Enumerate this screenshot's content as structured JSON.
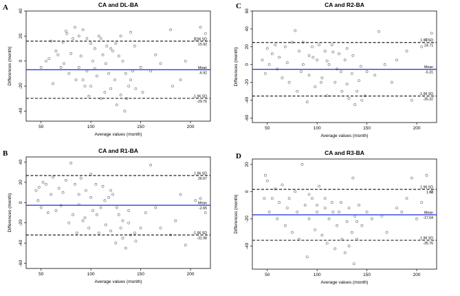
{
  "chart_data": [
    {
      "type": "scatter",
      "letter": "A",
      "title": "CA and DL-BA",
      "xlabel": "Average values (month)",
      "ylabel": "Differences (month)",
      "xlim": [
        35,
        220
      ],
      "ylim": [
        -48,
        40
      ],
      "xticks": [
        50,
        100,
        150,
        200
      ],
      "yticks": [
        -40,
        -20,
        0,
        20,
        40
      ],
      "lines": {
        "upper": {
          "value": 15.92,
          "label": "1.96 SD",
          "text": "15.92"
        },
        "mean": {
          "value": -6.92,
          "label": "Mean",
          "text": "-6.92"
        },
        "lower": {
          "value": -29.76,
          "label": "-1.96 SD",
          "text": "-29.76"
        }
      },
      "colors": {
        "mean": "#2b3be0",
        "limits": "#222222",
        "points": "#666666"
      },
      "points": [
        [
          50,
          -5
        ],
        [
          55,
          0
        ],
        [
          58,
          2
        ],
        [
          60,
          16
        ],
        [
          62,
          -18
        ],
        [
          65,
          8
        ],
        [
          67,
          5
        ],
        [
          70,
          -5
        ],
        [
          72,
          15
        ],
        [
          73,
          -2
        ],
        [
          75,
          24
        ],
        [
          76,
          22
        ],
        [
          78,
          -10
        ],
        [
          80,
          6
        ],
        [
          82,
          18
        ],
        [
          84,
          27
        ],
        [
          85,
          -15
        ],
        [
          88,
          20
        ],
        [
          90,
          4
        ],
        [
          92,
          25
        ],
        [
          94,
          -20
        ],
        [
          96,
          18
        ],
        [
          98,
          -28
        ],
        [
          100,
          -20
        ],
        [
          102,
          0
        ],
        [
          104,
          10
        ],
        [
          106,
          -12
        ],
        [
          108,
          20
        ],
        [
          110,
          -30
        ],
        [
          112,
          5
        ],
        [
          114,
          -25
        ],
        [
          116,
          12
        ],
        [
          118,
          -10
        ],
        [
          120,
          -22
        ],
        [
          122,
          8
        ],
        [
          124,
          -15
        ],
        [
          126,
          -35
        ],
        [
          128,
          4
        ],
        [
          130,
          -27
        ],
        [
          132,
          0
        ],
        [
          134,
          -40
        ],
        [
          136,
          -30
        ],
        [
          138,
          -20
        ],
        [
          140,
          -15
        ],
        [
          142,
          -8
        ],
        [
          145,
          -22
        ],
        [
          150,
          -5
        ],
        [
          152,
          -25
        ],
        [
          160,
          -8
        ],
        [
          165,
          5
        ],
        [
          170,
          -2
        ],
        [
          180,
          25
        ],
        [
          182,
          -20
        ],
        [
          190,
          -15
        ],
        [
          195,
          0
        ],
        [
          205,
          18
        ],
        [
          210,
          27
        ],
        [
          215,
          22
        ],
        [
          88,
          -5
        ],
        [
          92,
          -15
        ],
        [
          96,
          -8
        ],
        [
          100,
          14
        ],
        [
          104,
          -6
        ],
        [
          110,
          18
        ],
        [
          115,
          -2
        ],
        [
          120,
          10
        ],
        [
          125,
          14
        ],
        [
          130,
          20
        ],
        [
          135,
          -10
        ],
        [
          140,
          23
        ],
        [
          144,
          12
        ]
      ]
    },
    {
      "type": "scatter",
      "letter": "C",
      "title": "CA and R2-BA",
      "xlabel": "Average values (month)",
      "ylabel": "Differences (month)",
      "xlim": [
        35,
        220
      ],
      "ylim": [
        -65,
        60
      ],
      "xticks": [
        50,
        100,
        150,
        200
      ],
      "yticks": [
        -60,
        -40,
        -20,
        0,
        20,
        40,
        60
      ],
      "lines": {
        "upper": {
          "value": 24.71,
          "label": "1.96 SD",
          "text": "24.71"
        },
        "mean": {
          "value": -5.31,
          "label": "Mean",
          "text": "-5.31"
        },
        "lower": {
          "value": -35.32,
          "label": "-1.96 SD",
          "text": "-35.32"
        }
      },
      "colors": {
        "mean": "#2b3be0",
        "limits": "#222222",
        "points": "#666666"
      },
      "points": [
        [
          45,
          5
        ],
        [
          48,
          -10
        ],
        [
          50,
          18
        ],
        [
          52,
          0
        ],
        [
          55,
          12
        ],
        [
          58,
          22
        ],
        [
          60,
          -5
        ],
        [
          62,
          8
        ],
        [
          65,
          -15
        ],
        [
          68,
          20
        ],
        [
          70,
          2
        ],
        [
          72,
          -20
        ],
        [
          75,
          25
        ],
        [
          78,
          38
        ],
        [
          80,
          -30
        ],
        [
          82,
          15
        ],
        [
          84,
          -8
        ],
        [
          86,
          25
        ],
        [
          90,
          -42
        ],
        [
          92,
          10
        ],
        [
          95,
          20
        ],
        [
          98,
          -25
        ],
        [
          100,
          5
        ],
        [
          102,
          22
        ],
        [
          105,
          -15
        ],
        [
          108,
          15
        ],
        [
          110,
          -35
        ],
        [
          112,
          0
        ],
        [
          115,
          22
        ],
        [
          118,
          -20
        ],
        [
          120,
          -5
        ],
        [
          122,
          12
        ],
        [
          125,
          -30
        ],
        [
          128,
          5
        ],
        [
          130,
          -22
        ],
        [
          132,
          -38
        ],
        [
          135,
          -10
        ],
        [
          138,
          -45
        ],
        [
          140,
          -30
        ],
        [
          142,
          -18
        ],
        [
          145,
          -40
        ],
        [
          148,
          -35
        ],
        [
          150,
          -8
        ],
        [
          158,
          -12
        ],
        [
          162,
          37
        ],
        [
          168,
          0
        ],
        [
          175,
          -20
        ],
        [
          180,
          5
        ],
        [
          190,
          15
        ],
        [
          195,
          -40
        ],
        [
          205,
          20
        ],
        [
          210,
          28
        ],
        [
          215,
          35
        ],
        [
          86,
          0
        ],
        [
          92,
          -12
        ],
        [
          96,
          8
        ],
        [
          104,
          -20
        ],
        [
          110,
          4
        ],
        [
          116,
          14
        ],
        [
          124,
          -8
        ],
        [
          130,
          18
        ],
        [
          136,
          10
        ],
        [
          144,
          -2
        ]
      ]
    },
    {
      "type": "scatter",
      "letter": "B",
      "title": "CA and R1-BA",
      "xlabel": "Average values (month)",
      "ylabel": "Differences (month)",
      "xlim": [
        35,
        220
      ],
      "ylim": [
        -65,
        45
      ],
      "xticks": [
        50,
        100,
        150,
        200
      ],
      "yticks": [
        -60,
        -40,
        -20,
        0,
        20,
        40
      ],
      "lines": {
        "upper": {
          "value": 26.67,
          "label": "1.96 SD",
          "text": "26.67"
        },
        "mean": {
          "value": -2.65,
          "label": "Mean",
          "text": "-2.65"
        },
        "lower": {
          "value": -31.98,
          "label": "-1.96 SD",
          "text": "-31.98"
        }
      },
      "colors": {
        "mean": "#2b3be0",
        "limits": "#222222",
        "points": "#666666"
      },
      "points": [
        [
          45,
          12
        ],
        [
          47,
          2
        ],
        [
          48,
          15
        ],
        [
          50,
          -5
        ],
        [
          52,
          20
        ],
        [
          55,
          18
        ],
        [
          57,
          -10
        ],
        [
          60,
          8
        ],
        [
          62,
          25
        ],
        [
          65,
          -8
        ],
        [
          68,
          14
        ],
        [
          70,
          -3
        ],
        [
          72,
          10
        ],
        [
          75,
          22
        ],
        [
          78,
          -20
        ],
        [
          80,
          39
        ],
        [
          82,
          -12
        ],
        [
          84,
          18
        ],
        [
          86,
          -30
        ],
        [
          88,
          8
        ],
        [
          90,
          24
        ],
        [
          92,
          -18
        ],
        [
          95,
          12
        ],
        [
          98,
          -25
        ],
        [
          100,
          28
        ],
        [
          102,
          -8
        ],
        [
          105,
          18
        ],
        [
          108,
          -30
        ],
        [
          110,
          -5
        ],
        [
          112,
          16
        ],
        [
          115,
          -22
        ],
        [
          118,
          5
        ],
        [
          120,
          -28
        ],
        [
          122,
          8
        ],
        [
          125,
          -40
        ],
        [
          128,
          -12
        ],
        [
          130,
          -25
        ],
        [
          132,
          -35
        ],
        [
          135,
          -45
        ],
        [
          138,
          -20
        ],
        [
          140,
          -32
        ],
        [
          145,
          -38
        ],
        [
          150,
          -25
        ],
        [
          155,
          -10
        ],
        [
          160,
          37
        ],
        [
          165,
          -5
        ],
        [
          170,
          -25
        ],
        [
          180,
          -32
        ],
        [
          185,
          -18
        ],
        [
          190,
          8
        ],
        [
          195,
          -42
        ],
        [
          205,
          2
        ],
        [
          210,
          4
        ],
        [
          215,
          -10
        ],
        [
          88,
          -2
        ],
        [
          94,
          -15
        ],
        [
          100,
          5
        ],
        [
          106,
          -12
        ],
        [
          114,
          2
        ],
        [
          120,
          12
        ],
        [
          126,
          -5
        ],
        [
          132,
          -18
        ],
        [
          138,
          -8
        ],
        [
          144,
          -30
        ]
      ]
    },
    {
      "type": "scatter",
      "letter": "D",
      "title": "CA and R3-BA",
      "xlabel": "Average values (month)",
      "ylabel": "Differences (month)",
      "xlim": [
        35,
        220
      ],
      "ylim": [
        -57,
        24
      ],
      "xticks": [
        50,
        100,
        150,
        200
      ],
      "yticks": [
        -40,
        -20,
        0,
        20
      ],
      "lines": {
        "upper": {
          "value": 1.68,
          "label": "1.96 SD",
          "text": "1.68"
        },
        "mean": {
          "value": -17.04,
          "label": "Mean",
          "text": "-17.04"
        },
        "lower": {
          "value": -35.76,
          "label": "-1.96 SD",
          "text": "-35.76"
        }
      },
      "colors": {
        "mean": "#2b3be0",
        "limits": "#222222",
        "points": "#666666"
      },
      "points": [
        [
          47,
          -5
        ],
        [
          48,
          12
        ],
        [
          50,
          8
        ],
        [
          52,
          -15
        ],
        [
          55,
          -5
        ],
        [
          58,
          2
        ],
        [
          60,
          -20
        ],
        [
          62,
          -8
        ],
        [
          65,
          5
        ],
        [
          68,
          -25
        ],
        [
          70,
          -12
        ],
        [
          72,
          -5
        ],
        [
          75,
          -30
        ],
        [
          78,
          0
        ],
        [
          80,
          -15
        ],
        [
          82,
          -35
        ],
        [
          85,
          20
        ],
        [
          88,
          -10
        ],
        [
          90,
          -48
        ],
        [
          92,
          -20
        ],
        [
          95,
          -5
        ],
        [
          98,
          -28
        ],
        [
          100,
          -15
        ],
        [
          102,
          4
        ],
        [
          105,
          -32
        ],
        [
          108,
          -12
        ],
        [
          110,
          -38
        ],
        [
          112,
          -20
        ],
        [
          115,
          -8
        ],
        [
          118,
          -42
        ],
        [
          120,
          -25
        ],
        [
          122,
          -15
        ],
        [
          125,
          -35
        ],
        [
          128,
          -45
        ],
        [
          130,
          -22
        ],
        [
          132,
          -40
        ],
        [
          135,
          -30
        ],
        [
          137,
          -53
        ],
        [
          138,
          -18
        ],
        [
          140,
          -35
        ],
        [
          142,
          -10
        ],
        [
          145,
          -25
        ],
        [
          150,
          -15
        ],
        [
          155,
          -20
        ],
        [
          165,
          -18
        ],
        [
          170,
          -30
        ],
        [
          180,
          -12
        ],
        [
          185,
          -15
        ],
        [
          190,
          -5
        ],
        [
          195,
          10
        ],
        [
          200,
          -20
        ],
        [
          205,
          -8
        ],
        [
          210,
          12
        ],
        [
          215,
          0
        ],
        [
          92,
          -2
        ],
        [
          100,
          -10
        ],
        [
          108,
          -5
        ],
        [
          116,
          -15
        ],
        [
          124,
          -8
        ],
        [
          132,
          -12
        ],
        [
          140,
          -22
        ],
        [
          136,
          10
        ]
      ]
    }
  ]
}
